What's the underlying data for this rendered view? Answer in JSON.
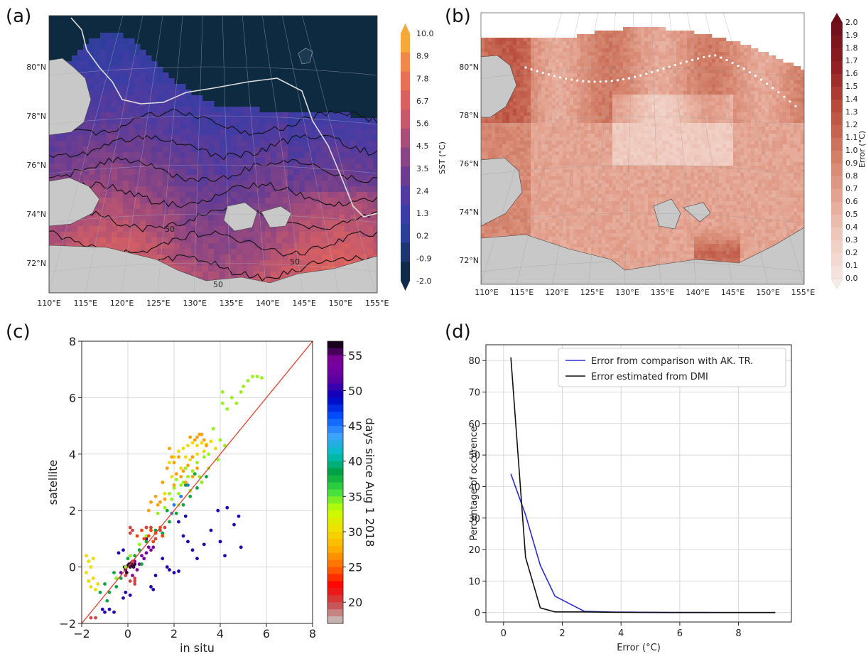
{
  "panels": {
    "a_label": "(a)",
    "b_label": "(b)",
    "c_label": "(c)",
    "d_label": "(d)"
  },
  "chart_data": [
    {
      "panel": "(a)",
      "type": "heatmap",
      "lat_ticks": [
        "80°N",
        "78°N",
        "76°N",
        "74°N",
        "72°N"
      ],
      "lon_ticks": [
        "110°E",
        "115°E",
        "120°E",
        "125°E",
        "130°E",
        "135°E",
        "140°E",
        "145°E",
        "150°E",
        "155°E"
      ],
      "colorbar": {
        "label": "SST (°C)",
        "ticks": [
          "10.0",
          "8.9",
          "7.8",
          "6.7",
          "5.6",
          "4.5",
          "3.5",
          "2.4",
          "1.3",
          "0.2",
          "-0.9",
          "-2.0"
        ],
        "colors": [
          "#f5a93a",
          "#f0884a",
          "#e97055",
          "#da6060",
          "#c65a6a",
          "#a94e78",
          "#8a4584",
          "#6c3d8f",
          "#503ba0",
          "#3a3da5",
          "#2a3f96",
          "#1d3670",
          "#102a4c"
        ]
      },
      "contour_labels": [
        "50",
        "50",
        "50"
      ]
    },
    {
      "panel": "(b)",
      "type": "heatmap",
      "lat_ticks": [
        "80°N",
        "78°N",
        "76°N",
        "74°N",
        "72°N"
      ],
      "lon_ticks": [
        "110°E",
        "115°E",
        "120°E",
        "125°E",
        "130°E",
        "135°E",
        "140°E",
        "145°E",
        "150°E",
        "155°E"
      ],
      "colorbar": {
        "label": "Error (°C)",
        "ticks": [
          "2.0",
          "1.9",
          "1.8",
          "1.7",
          "1.6",
          "1.5",
          "1.4",
          "1.3",
          "1.2",
          "1.1",
          "1.0",
          "0.9",
          "0.8",
          "0.7",
          "0.6",
          "0.5",
          "0.4",
          "0.3",
          "0.2",
          "0.1",
          "0.0"
        ]
      }
    },
    {
      "panel": "(c)",
      "type": "scatter",
      "xlabel": "in situ",
      "ylabel": "satellite",
      "xlim": [
        -2,
        8
      ],
      "ylim": [
        -2,
        8
      ],
      "x_ticks": [
        "−2",
        "0",
        "2",
        "4",
        "6",
        "8"
      ],
      "y_ticks": [
        "−2",
        "0",
        "2",
        "4",
        "6",
        "8"
      ],
      "grid": true,
      "one_to_one_line": true,
      "colorbar": {
        "label": "days since Aug 1 2018",
        "ticks": [
          "55",
          "50",
          "45",
          "40",
          "35",
          "30",
          "25",
          "20"
        ],
        "range": [
          17,
          57
        ]
      },
      "clusters": [
        {
          "day": 56,
          "points": [
            [
              0.0,
              0.05
            ],
            [
              0.1,
              0.0
            ],
            [
              -0.1,
              -0.1
            ],
            [
              0.05,
              0.1
            ],
            [
              0.2,
              0.05
            ],
            [
              -0.05,
              -0.2
            ],
            [
              0.15,
              0.15
            ],
            [
              0.25,
              0.0
            ],
            [
              0.3,
              0.1
            ],
            [
              -0.15,
              0.0
            ]
          ]
        },
        {
          "day": 54,
          "points": [
            [
              0.3,
              0.2
            ],
            [
              0.6,
              0.4
            ],
            [
              0.9,
              0.7
            ],
            [
              1.0,
              0.6
            ],
            [
              0.7,
              0.3
            ],
            [
              0.5,
              0.1
            ],
            [
              -0.3,
              -0.2
            ],
            [
              -0.5,
              -0.4
            ],
            [
              0.4,
              -0.1
            ],
            [
              0.8,
              0.5
            ],
            [
              1.1,
              0.7
            ],
            [
              0.2,
              -0.3
            ]
          ]
        },
        {
          "day": 50,
          "points": [
            [
              2.2,
              1.6
            ],
            [
              2.4,
              1.1
            ],
            [
              2.6,
              0.9
            ],
            [
              2.8,
              0.6
            ],
            [
              3.0,
              0.3
            ],
            [
              3.3,
              0.8
            ],
            [
              3.6,
              1.3
            ],
            [
              4.0,
              0.9
            ],
            [
              4.2,
              0.4
            ],
            [
              4.6,
              1.5
            ],
            [
              4.8,
              1.8
            ],
            [
              4.9,
              0.7
            ],
            [
              3.9,
              2.0
            ],
            [
              4.3,
              2.1
            ],
            [
              1.8,
              -0.1
            ],
            [
              2.0,
              -0.2
            ],
            [
              2.2,
              -0.15
            ],
            [
              1.2,
              -0.3
            ],
            [
              1.0,
              -0.7
            ],
            [
              1.1,
              -0.8
            ],
            [
              -0.1,
              -0.9
            ],
            [
              0.1,
              -1.0
            ],
            [
              -0.2,
              -1.1
            ],
            [
              -1.1,
              -1.5
            ],
            [
              -1.0,
              -1.6
            ],
            [
              -0.8,
              -1.5
            ],
            [
              -0.6,
              -1.6
            ],
            [
              0.8,
              1.0
            ],
            [
              1.5,
              0.3
            ],
            [
              1.7,
              0.0
            ],
            [
              2.5,
              1.8
            ],
            [
              0.5,
              0.6
            ],
            [
              -0.4,
              0.5
            ],
            [
              -0.2,
              0.6
            ]
          ]
        },
        {
          "day": 45,
          "points": [
            [
              2.0,
              2.2
            ],
            [
              2.3,
              2.5
            ],
            [
              2.6,
              2.9
            ],
            [
              1.9,
              1.9
            ]
          ]
        },
        {
          "day": 38,
          "points": [
            [
              0.3,
              0.4
            ],
            [
              0.5,
              0.6
            ],
            [
              0.8,
              0.9
            ],
            [
              -0.5,
              -0.7
            ],
            [
              -0.8,
              -0.9
            ],
            [
              -1.0,
              -0.6
            ],
            [
              -0.3,
              -0.4
            ],
            [
              1.2,
              1.3
            ],
            [
              1.5,
              1.2
            ],
            [
              1.8,
              1.6
            ],
            [
              2.1,
              1.9
            ],
            [
              2.4,
              2.2
            ],
            [
              2.7,
              2.5
            ],
            [
              3.0,
              2.8
            ],
            [
              3.2,
              3.0
            ],
            [
              3.4,
              3.2
            ],
            [
              2.5,
              2.9
            ],
            [
              2.9,
              3.3
            ],
            [
              1.7,
              2.0
            ],
            [
              0.0,
              0.3
            ],
            [
              -0.6,
              -0.2
            ],
            [
              0.6,
              0.1
            ],
            [
              -0.9,
              -1.2
            ],
            [
              -1.2,
              -0.9
            ]
          ]
        },
        {
          "day": 34,
          "points": [
            [
              1.8,
              2.6
            ],
            [
              2.0,
              2.8
            ],
            [
              2.2,
              2.6
            ],
            [
              2.4,
              3.0
            ],
            [
              2.6,
              3.2
            ],
            [
              2.8,
              3.4
            ],
            [
              3.0,
              3.7
            ],
            [
              3.3,
              3.9
            ],
            [
              2.1,
              3.1
            ],
            [
              1.9,
              2.4
            ],
            [
              2.3,
              2.9
            ],
            [
              2.7,
              2.7
            ],
            [
              3.1,
              3.2
            ],
            [
              3.5,
              3.5
            ],
            [
              3.7,
              4.9
            ],
            [
              4.0,
              4.5
            ],
            [
              4.1,
              5.8
            ],
            [
              4.3,
              5.6
            ],
            [
              4.5,
              6.0
            ],
            [
              4.7,
              5.8
            ],
            [
              4.9,
              6.2
            ],
            [
              5.0,
              6.4
            ],
            [
              5.2,
              6.6
            ],
            [
              5.4,
              6.75
            ],
            [
              5.6,
              6.75
            ],
            [
              5.8,
              6.7
            ],
            [
              4.1,
              6.2
            ],
            [
              3.5,
              4.0
            ],
            [
              3.9,
              3.8
            ],
            [
              4.2,
              4.3
            ],
            [
              1.0,
              1.4
            ],
            [
              1.3,
              1.9
            ],
            [
              1.6,
              2.1
            ],
            [
              2.5,
              3.5
            ],
            [
              3.2,
              3.0
            ],
            [
              0.8,
              1.1
            ],
            [
              0.5,
              0.8
            ],
            [
              -0.1,
              0.0
            ],
            [
              0.1,
              0.4
            ],
            [
              -0.5,
              -0.4
            ],
            [
              2.2,
              2.2
            ]
          ]
        },
        {
          "day": 30,
          "points": [
            [
              -1.8,
              0.4
            ],
            [
              -1.7,
              0.2
            ],
            [
              -1.6,
              0.0
            ],
            [
              -1.8,
              -0.2
            ],
            [
              -1.7,
              -0.5
            ],
            [
              -1.6,
              -0.7
            ],
            [
              -1.5,
              -0.4
            ],
            [
              -1.4,
              -0.8
            ],
            [
              -1.3,
              -0.6
            ],
            [
              -1.5,
              0.3
            ],
            [
              1.8,
              3.7
            ],
            [
              2.0,
              3.9
            ],
            [
              2.2,
              4.1
            ],
            [
              2.4,
              4.2
            ],
            [
              2.6,
              4.3
            ],
            [
              2.8,
              4.4
            ],
            [
              3.0,
              4.3
            ],
            [
              3.2,
              4.4
            ],
            [
              3.4,
              4.35
            ],
            [
              3.6,
              4.45
            ],
            [
              3.8,
              4.2
            ],
            [
              2.5,
              3.9
            ],
            [
              2.7,
              3.8
            ],
            [
              3.0,
              4.0
            ],
            [
              3.3,
              4.1
            ],
            [
              1.9,
              3.2
            ],
            [
              2.3,
              3.5
            ],
            [
              1.6,
              2.6
            ]
          ]
        },
        {
          "day": 27,
          "points": [
            [
              1.8,
              4.2
            ],
            [
              1.9,
              3.9
            ],
            [
              2.0,
              3.7
            ],
            [
              2.2,
              3.9
            ],
            [
              2.1,
              3.3
            ],
            [
              2.4,
              3.4
            ],
            [
              2.6,
              3.6
            ],
            [
              2.8,
              3.9
            ],
            [
              2.9,
              4.5
            ],
            [
              3.1,
              4.7
            ],
            [
              3.3,
              4.5
            ],
            [
              2.7,
              4.6
            ],
            [
              3.0,
              4.6
            ],
            [
              3.2,
              4.7
            ],
            [
              3.4,
              4.3
            ],
            [
              1.7,
              3.5
            ],
            [
              1.5,
              3.0
            ],
            [
              1.2,
              2.5
            ],
            [
              1.4,
              2.3
            ],
            [
              1.6,
              2.4
            ],
            [
              0.9,
              2.0
            ],
            [
              1.0,
              2.3
            ],
            [
              1.3,
              2.2
            ],
            [
              2.0,
              2.9
            ],
            [
              2.3,
              3.2
            ],
            [
              2.5,
              3.0
            ],
            [
              2.8,
              3.2
            ],
            [
              3.0,
              3.5
            ]
          ]
        },
        {
          "day": 24,
          "points": [
            [
              0.4,
              1.1
            ],
            [
              0.6,
              1.3
            ],
            [
              0.8,
              1.4
            ],
            [
              1.0,
              1.3
            ],
            [
              1.2,
              1.2
            ],
            [
              1.4,
              1.4
            ],
            [
              1.5,
              1.1
            ],
            [
              0.7,
              1.0
            ],
            [
              0.9,
              1.1
            ],
            [
              1.1,
              0.9
            ]
          ]
        },
        {
          "day": 20,
          "points": [
            [
              0.1,
              1.4
            ],
            [
              0.2,
              1.3
            ],
            [
              0.1,
              1.2
            ],
            [
              0.2,
              0.2
            ],
            [
              0.3,
              -0.4
            ],
            [
              0.1,
              -0.5
            ],
            [
              0.3,
              -0.6
            ],
            [
              -0.1,
              -0.3
            ],
            [
              1.2,
              1.0
            ],
            [
              1.4,
              1.3
            ],
            [
              1.6,
              1.4
            ],
            [
              0.8,
              1.4
            ],
            [
              1.0,
              1.4
            ],
            [
              -1.6,
              -1.8
            ],
            [
              -1.4,
              -1.8
            ],
            [
              0.3,
              -0.5
            ]
          ]
        }
      ]
    },
    {
      "panel": "(d)",
      "type": "line",
      "xlabel": "Error (°C)",
      "ylabel": "Percentage of occurence",
      "xlim": [
        -0.6,
        9.8
      ],
      "ylim": [
        -3,
        85
      ],
      "x_ticks": [
        "0",
        "2",
        "4",
        "6",
        "8"
      ],
      "y_ticks": [
        "0",
        "10",
        "20",
        "30",
        "40",
        "50",
        "60",
        "70",
        "80"
      ],
      "grid": true,
      "legend_position": "top-right",
      "series": [
        {
          "name": "Error from comparison with AK. TR.",
          "color": "#2b2bdc",
          "x": [
            0.25,
            0.75,
            1.25,
            1.75,
            2.75,
            3.75,
            4.75,
            5.75,
            6.75,
            7.75,
            8.75,
            9.25
          ],
          "values": [
            44,
            31,
            15,
            5.2,
            0.4,
            0.15,
            0.1,
            0.05,
            0.05,
            0.0,
            0.0,
            0.0
          ]
        },
        {
          "name": "Error estimated from DMI",
          "color": "#111111",
          "x": [
            0.25,
            0.75,
            1.25,
            1.75,
            2.75,
            3.75,
            4.75,
            5.75,
            6.75,
            7.75,
            8.75,
            9.25
          ],
          "values": [
            81,
            17.5,
            1.5,
            0.2,
            0.2,
            0.1,
            0.05,
            0.0,
            0.0,
            0.0,
            0.0,
            0.0
          ]
        }
      ]
    }
  ]
}
